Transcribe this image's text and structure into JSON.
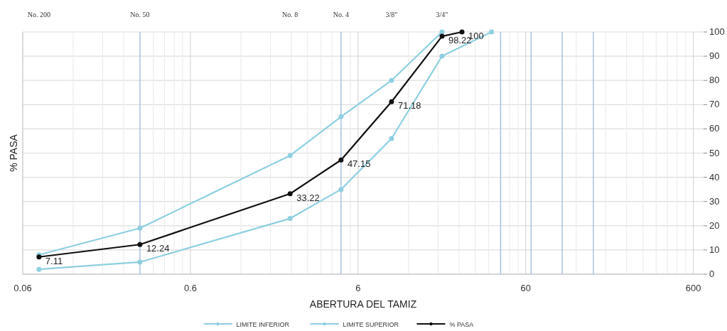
{
  "chart_data": {
    "type": "line",
    "xlabel": "ABERTURA DEL TAMIZ",
    "ylabel": "% PASA",
    "log": "x",
    "grid": true,
    "legend": "bottom",
    "marker": "circle",
    "line_style": "solid",
    "xlim": [
      0.06,
      690
    ],
    "ylim": [
      0,
      100
    ],
    "xticks": [
      0.06,
      {
        "value": 0.12,
        "label": null
      },
      {
        "value": 0.18,
        "label": null
      },
      {
        "value": 0.24,
        "label": null
      },
      {
        "value": 0.36,
        "label": null
      },
      {
        "value": 0.42,
        "label": null
      },
      {
        "value": 0.48,
        "label": null
      },
      {
        "value": 0.54,
        "label": null
      },
      0.6,
      {
        "value": 1.2,
        "label": null
      },
      {
        "value": 1.8,
        "label": null
      },
      {
        "value": 2.4,
        "label": null
      },
      {
        "value": 3,
        "label": null
      },
      {
        "value": 3.6,
        "label": null
      },
      {
        "value": 4.2,
        "label": null
      },
      {
        "value": 5.4,
        "label": null
      },
      6,
      {
        "value": 12,
        "label": null
      },
      {
        "value": 18,
        "label": null
      },
      {
        "value": 24,
        "label": null
      },
      {
        "value": 30,
        "label": null
      },
      {
        "value": 36,
        "label": null
      },
      {
        "value": 48,
        "label": null
      },
      {
        "value": 54,
        "label": null
      },
      60,
      {
        "value": 120,
        "label": null
      },
      {
        "value": 180,
        "label": null
      },
      {
        "value": 240,
        "label": null
      },
      {
        "value": 300,
        "label": null
      },
      {
        "value": 360,
        "label": null
      },
      {
        "value": 420,
        "label": null
      },
      {
        "value": 480,
        "label": null
      },
      {
        "value": 540,
        "label": null
      },
      600
    ],
    "yticks": [
      0,
      10,
      20,
      30,
      40,
      50,
      60,
      70,
      80,
      90,
      100
    ],
    "series": [
      {
        "name": "LIMITE INFERIOR",
        "color": "#8ecfe0",
        "x": [
          0.075,
          0.3,
          2.36,
          4.75,
          9.5,
          19,
          25,
          37.5
        ],
        "values": [
          2,
          5,
          23,
          35,
          56,
          90,
          null,
          100
        ]
      },
      {
        "name": "LIMITE SUPERIOR",
        "color": "#8ecfe0",
        "x": [
          0.075,
          0.3,
          2.36,
          4.75,
          9.5,
          19
        ],
        "values": [
          8,
          19,
          49,
          65,
          80,
          100
        ]
      },
      {
        "name": "% PASA",
        "color": "#111111",
        "x": [
          0.075,
          0.3,
          2.36,
          4.75,
          9.5,
          19,
          25
        ],
        "values": [
          7.11,
          12.24,
          33.22,
          47.15,
          71.18,
          98.22,
          100
        ],
        "value_labels": [
          "7.11",
          "12.24",
          "33.22",
          "47.15",
          "71.18",
          "98.22",
          "100"
        ]
      }
    ],
    "ref_lines": [
      {
        "axis": "x",
        "value": 0.3,
        "color": "#a9c1e3"
      },
      {
        "axis": "x",
        "value": 4.75,
        "color": "#a9c1e3"
      },
      {
        "axis": "x",
        "value": 42.5,
        "color": "#a9c1e3"
      },
      {
        "axis": "x",
        "value": 64.6,
        "color": "#a9c1e3"
      },
      {
        "axis": "x",
        "value": 99,
        "color": "#a9c1e3"
      },
      {
        "axis": "x",
        "value": 152,
        "color": "#a9c1e3"
      }
    ],
    "annotations": [
      "No. 200",
      "No. 50",
      "No. 8",
      "No. 4",
      "3/8\"",
      "3/4\""
    ]
  }
}
